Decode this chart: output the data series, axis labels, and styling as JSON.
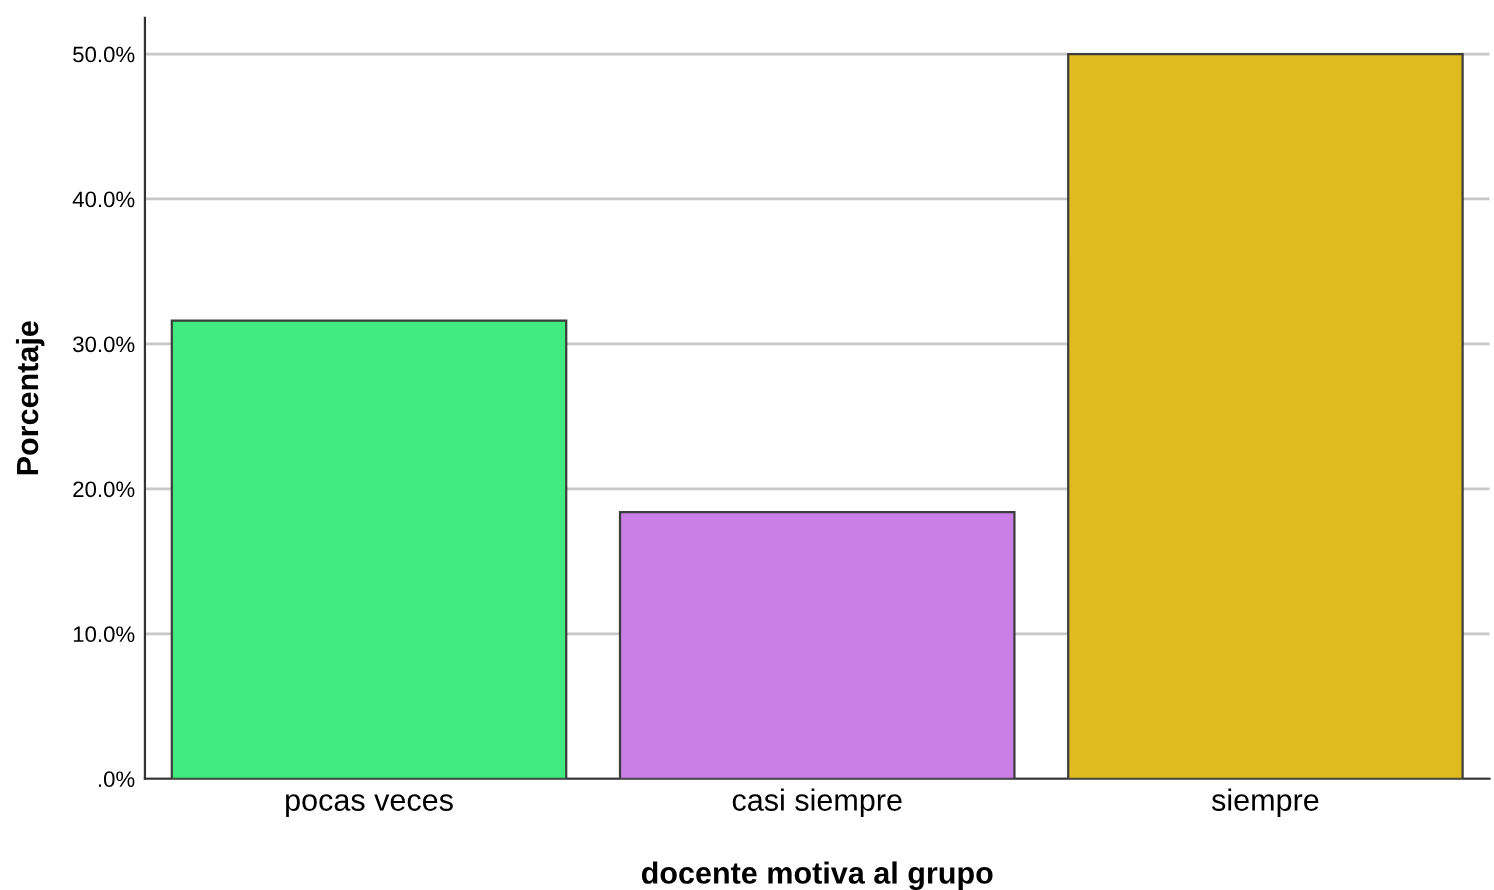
{
  "chart_data": {
    "type": "bar",
    "xlabel": "docente motiva al grupo",
    "ylabel": "Porcentaje",
    "categories": [
      "pocas veces",
      "casi siempre",
      "siempre"
    ],
    "values": [
      31.6,
      18.4,
      50.0
    ],
    "colors": [
      "#3feb7e",
      "#c97fe6",
      "#dfbb1f"
    ],
    "ylim": [
      0,
      52.5
    ],
    "yticks": [
      {
        "value": 0,
        "label": ".0%"
      },
      {
        "value": 10,
        "label": "10.0%"
      },
      {
        "value": 20,
        "label": "20.0%"
      },
      {
        "value": 30,
        "label": "30.0%"
      },
      {
        "value": 40,
        "label": "40.0%"
      },
      {
        "value": 50,
        "label": "50.0%"
      }
    ],
    "grid": "y"
  }
}
